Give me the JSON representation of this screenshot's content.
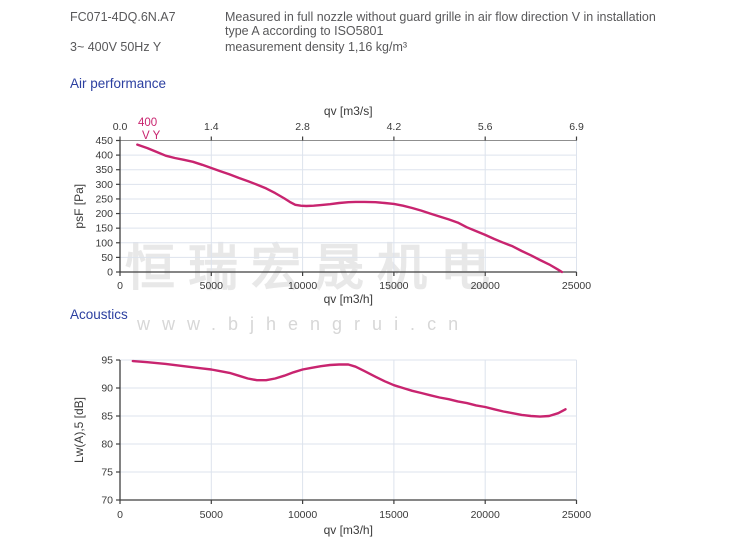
{
  "header": {
    "model": "FC071-4DQ.6N.A7",
    "power": "3~ 400V 50Hz Y",
    "note_lines": [
      "Measured in full nozzle without guard grille in air flow direction V in installation",
      "type A according to ISO5801"
    ],
    "density": "measurement density 1,16 kg/m³"
  },
  "watermark": {
    "cn": "恒瑞宏晟机电",
    "url": "www.bjhengrui.cn"
  },
  "colors": {
    "curve": "#c8246f",
    "grid": "#dde3ed",
    "axis": "#3f3f3f",
    "top_border": "#8f8f8f",
    "title": "#2b3fa0",
    "header_text": "#58585a",
    "tick_text": "#3a3a3a",
    "watermark_cn": "#e8e8e8",
    "watermark_url": "#d7d7d7"
  },
  "chart_data": [
    {
      "type": "line",
      "title": "Air performance",
      "xlabel": "qv [m3/h]",
      "ylabel": "psF [Pa]",
      "top_axis_label": "qv [m3/s]",
      "top_tick_labels": [
        "0.0",
        "1.4",
        "2.8",
        "4.2",
        "5.6",
        "6.9"
      ],
      "xlim": [
        0,
        25000
      ],
      "ylim": [
        0,
        450
      ],
      "xticks": [
        0,
        5000,
        10000,
        15000,
        20000,
        25000
      ],
      "yticks": [
        0,
        50,
        100,
        150,
        200,
        250,
        300,
        350,
        400,
        450
      ],
      "grid": true,
      "series": [
        {
          "name": "400 V Y",
          "label_lines": [
            "400",
            "V Y"
          ],
          "points": [
            [
              950,
              436
            ],
            [
              1500,
              424
            ],
            [
              2000,
              411
            ],
            [
              2500,
              398
            ],
            [
              3000,
              390
            ],
            [
              3500,
              384
            ],
            [
              4000,
              377
            ],
            [
              4500,
              367
            ],
            [
              5000,
              356
            ],
            [
              5500,
              345
            ],
            [
              6000,
              334
            ],
            [
              6500,
              322
            ],
            [
              7000,
              311
            ],
            [
              7500,
              299
            ],
            [
              8000,
              286
            ],
            [
              8500,
              270
            ],
            [
              9000,
              252
            ],
            [
              9300,
              240
            ],
            [
              9600,
              230
            ],
            [
              9900,
              227
            ],
            [
              10200,
              226
            ],
            [
              10600,
              227
            ],
            [
              11000,
              229
            ],
            [
              11500,
              232
            ],
            [
              12000,
              236
            ],
            [
              12500,
              239
            ],
            [
              12900,
              240
            ],
            [
              13400,
              240
            ],
            [
              14000,
              239
            ],
            [
              14500,
              236
            ],
            [
              15000,
              233
            ],
            [
              15500,
              227
            ],
            [
              16000,
              219
            ],
            [
              16500,
              210
            ],
            [
              17000,
              200
            ],
            [
              17500,
              190
            ],
            [
              18000,
              180
            ],
            [
              18500,
              169
            ],
            [
              19000,
              153
            ],
            [
              19500,
              140
            ],
            [
              20000,
              127
            ],
            [
              20500,
              113
            ],
            [
              21000,
              100
            ],
            [
              21500,
              88
            ],
            [
              22000,
              72
            ],
            [
              22500,
              57
            ],
            [
              23000,
              41
            ],
            [
              23500,
              26
            ],
            [
              24000,
              8
            ],
            [
              24200,
              0
            ]
          ]
        }
      ]
    },
    {
      "type": "line",
      "title": "Acoustics",
      "xlabel": "qv [m3/h]",
      "ylabel": "Lw(A),5 [dB]",
      "xlim": [
        0,
        25000
      ],
      "ylim": [
        70,
        95
      ],
      "xticks": [
        0,
        5000,
        10000,
        15000,
        20000,
        25000
      ],
      "yticks": [
        70,
        75,
        80,
        85,
        90,
        95
      ],
      "grid": true,
      "series": [
        {
          "name": "400 V Y",
          "points": [
            [
              700,
              94.8
            ],
            [
              1500,
              94.6
            ],
            [
              2500,
              94.3
            ],
            [
              3500,
              93.9
            ],
            [
              4500,
              93.5
            ],
            [
              5000,
              93.3
            ],
            [
              5500,
              93.0
            ],
            [
              6000,
              92.7
            ],
            [
              6500,
              92.2
            ],
            [
              7000,
              91.7
            ],
            [
              7500,
              91.4
            ],
            [
              8000,
              91.4
            ],
            [
              8500,
              91.7
            ],
            [
              9000,
              92.2
            ],
            [
              9500,
              92.8
            ],
            [
              10000,
              93.3
            ],
            [
              10500,
              93.6
            ],
            [
              11000,
              93.9
            ],
            [
              11500,
              94.1
            ],
            [
              12000,
              94.2
            ],
            [
              12500,
              94.2
            ],
            [
              12900,
              93.8
            ],
            [
              13400,
              93.0
            ],
            [
              14000,
              92.0
            ],
            [
              14500,
              91.2
            ],
            [
              15000,
              90.5
            ],
            [
              15500,
              90.0
            ],
            [
              16000,
              89.5
            ],
            [
              16500,
              89.1
            ],
            [
              17000,
              88.7
            ],
            [
              17500,
              88.3
            ],
            [
              18000,
              88.0
            ],
            [
              18500,
              87.6
            ],
            [
              19000,
              87.3
            ],
            [
              19500,
              86.9
            ],
            [
              20000,
              86.6
            ],
            [
              20500,
              86.2
            ],
            [
              21000,
              85.8
            ],
            [
              21500,
              85.5
            ],
            [
              22000,
              85.2
            ],
            [
              22500,
              85.0
            ],
            [
              23000,
              84.9
            ],
            [
              23500,
              85.0
            ],
            [
              24000,
              85.5
            ],
            [
              24400,
              86.2
            ]
          ]
        }
      ]
    }
  ]
}
